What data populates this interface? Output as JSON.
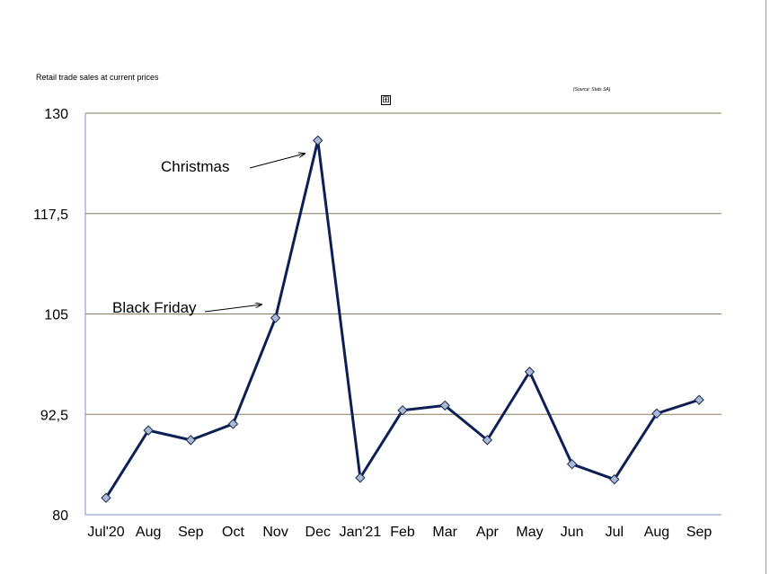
{
  "chart_data": {
    "type": "line",
    "title": "Retail trade sales at current prices",
    "source": "(Source: Stats SA)",
    "categories": [
      "Jul'20",
      "Aug",
      "Sep",
      "Oct",
      "Nov",
      "Dec",
      "Jan'21",
      "Feb",
      "Mar",
      "Apr",
      "May",
      "Jun",
      "Jul",
      "Aug",
      "Sep"
    ],
    "series": [
      {
        "values": [
          82.1,
          90.5,
          89.3,
          91.3,
          104.5,
          126.6,
          84.6,
          93.0,
          93.6,
          89.3,
          97.8,
          86.3,
          84.4,
          92.6,
          94.3
        ]
      }
    ],
    "yticks": [
      "130",
      "117,5",
      "105",
      "92,5",
      "80"
    ],
    "ylim": [
      80,
      130
    ],
    "grid": true,
    "colors": {
      "line": "#0d1f55",
      "marker": "#a9b9d6",
      "grid": "#8c7a5a",
      "axis": "#7b8fc9"
    },
    "annotations": [
      {
        "text": "Christmas",
        "points_to": "Dec"
      },
      {
        "text": "Black Friday",
        "points_to": "Nov"
      }
    ]
  }
}
